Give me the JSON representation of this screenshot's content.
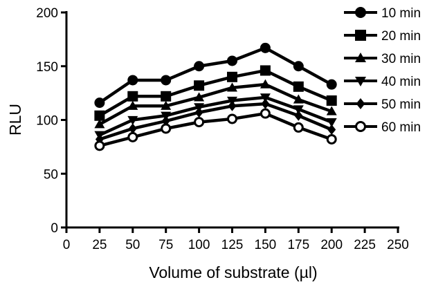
{
  "chart_data": {
    "type": "line",
    "xlabel": "Volume of substrate (µl)",
    "ylabel": "RLU",
    "xlim": [
      0,
      250
    ],
    "ylim": [
      0,
      200
    ],
    "x_ticks": [
      0,
      25,
      50,
      75,
      100,
      125,
      150,
      175,
      200,
      225,
      250
    ],
    "y_ticks": [
      0,
      50,
      100,
      150,
      200
    ],
    "grid": false,
    "legend_position": "top-right",
    "x": [
      25,
      50,
      75,
      100,
      125,
      150,
      175,
      200
    ],
    "series": [
      {
        "name": "10 min",
        "marker": "filled-circle",
        "values": [
          116,
          137,
          137,
          150,
          155,
          167,
          150,
          133
        ]
      },
      {
        "name": "20 min",
        "marker": "filled-square",
        "values": [
          104,
          122,
          122,
          132,
          140,
          146,
          131,
          118
        ]
      },
      {
        "name": "30 min",
        "marker": "filled-triangle-up",
        "values": [
          96,
          113,
          113,
          121,
          130,
          133,
          119,
          108
        ]
      },
      {
        "name": "40 min",
        "marker": "filled-triangle-down",
        "values": [
          86,
          100,
          104,
          112,
          118,
          121,
          110,
          98
        ]
      },
      {
        "name": "50 min",
        "marker": "filled-diamond",
        "values": [
          82,
          92,
          99,
          107,
          113,
          115,
          104,
          91
        ]
      },
      {
        "name": "60 min",
        "marker": "open-circle",
        "values": [
          76,
          84,
          92,
          98,
          101,
          106,
          93,
          82
        ]
      }
    ],
    "color": "#000000"
  }
}
